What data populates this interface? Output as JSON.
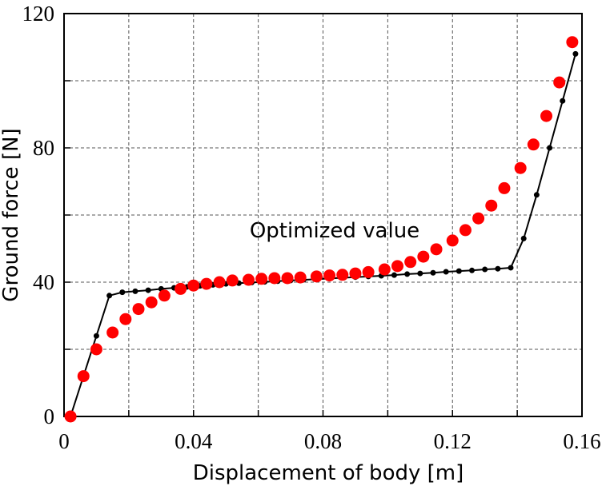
{
  "chart_data": {
    "type": "line",
    "x_label": "Displacement of body [m]",
    "y_label": "Ground force [N]",
    "annotation": "Optimized value",
    "xlim": [
      0,
      0.16
    ],
    "ylim": [
      0,
      120
    ],
    "xticks": [
      0,
      0.04,
      0.08,
      0.12,
      0.16
    ],
    "yticks": [
      0,
      40,
      80,
      120
    ],
    "xminor": [
      0.02,
      0.06,
      0.1,
      0.14
    ],
    "yminor": [
      20,
      60,
      100
    ],
    "grid": true,
    "series": [
      {
        "color": "#000000",
        "mode": "lines+markers",
        "x": [
          0.002,
          0.01,
          0.014,
          0.018,
          0.022,
          0.026,
          0.03,
          0.034,
          0.038,
          0.042,
          0.046,
          0.05,
          0.054,
          0.058,
          0.062,
          0.066,
          0.07,
          0.074,
          0.078,
          0.082,
          0.086,
          0.09,
          0.094,
          0.098,
          0.102,
          0.106,
          0.11,
          0.114,
          0.118,
          0.122,
          0.126,
          0.13,
          0.134,
          0.138,
          0.142,
          0.146,
          0.15,
          0.154,
          0.158
        ],
        "values": [
          0,
          24,
          36,
          37,
          37.3,
          37.6,
          38,
          38.3,
          38.6,
          38.9,
          39.2,
          39.5,
          39.7,
          39.9,
          40.1,
          40.3,
          40.5,
          40.7,
          40.9,
          41.1,
          41.3,
          41.5,
          41.7,
          41.9,
          42.1,
          42.4,
          42.6,
          42.8,
          43.1,
          43.3,
          43.5,
          43.8,
          44,
          44.3,
          53,
          66,
          80,
          94,
          108
        ]
      },
      {
        "color": "#ff0000",
        "mode": "markers",
        "x": [
          0.002,
          0.006,
          0.01,
          0.015,
          0.019,
          0.023,
          0.027,
          0.031,
          0.036,
          0.04,
          0.044,
          0.048,
          0.052,
          0.057,
          0.061,
          0.065,
          0.069,
          0.073,
          0.078,
          0.082,
          0.086,
          0.09,
          0.094,
          0.099,
          0.103,
          0.107,
          0.111,
          0.115,
          0.12,
          0.124,
          0.128,
          0.132,
          0.136,
          0.141,
          0.145,
          0.149,
          0.153,
          0.157
        ],
        "values": [
          0,
          12,
          20,
          25,
          29,
          32,
          34,
          36,
          38,
          39,
          39.5,
          40,
          40.5,
          40.7,
          41,
          41.2,
          41.2,
          41.4,
          41.7,
          42,
          42.2,
          42.6,
          43,
          43.8,
          44.8,
          46,
          47.6,
          49.8,
          52.4,
          55.5,
          59,
          62.8,
          68,
          74,
          81,
          89.5,
          99.5,
          111.5
        ]
      }
    ]
  }
}
